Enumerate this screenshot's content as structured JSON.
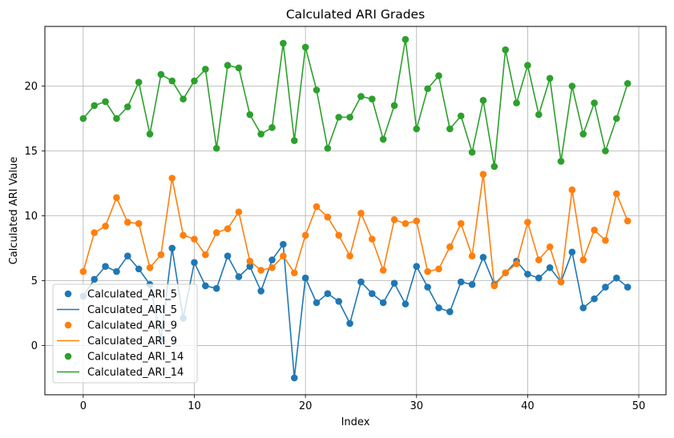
{
  "chart_data": {
    "type": "line",
    "title": "Calculated ARI Grades",
    "xlabel": "Index",
    "ylabel": "Calculated ARI Value",
    "xlim": [
      -3.45,
      52.45
    ],
    "ylim": [
      -3.8,
      24.6
    ],
    "xticks": [
      0,
      10,
      20,
      30,
      40,
      50
    ],
    "yticks": [
      0,
      5,
      10,
      15,
      20
    ],
    "grid": true,
    "legend_position": "lower-left",
    "legend_entries": [
      {
        "label": "Calculated_ARI_5",
        "kind": "markers",
        "series": 0
      },
      {
        "label": "Calculated_ARI_5",
        "kind": "line",
        "series": 0
      },
      {
        "label": "Calculated_ARI_9",
        "kind": "markers",
        "series": 1
      },
      {
        "label": "Calculated_ARI_9",
        "kind": "line",
        "series": 1
      },
      {
        "label": "Calculated_ARI_14",
        "kind": "markers",
        "series": 2
      },
      {
        "label": "Calculated_ARI_14",
        "kind": "line",
        "series": 2
      }
    ],
    "x": [
      0,
      1,
      2,
      3,
      4,
      5,
      6,
      7,
      8,
      9,
      10,
      11,
      12,
      13,
      14,
      15,
      16,
      17,
      18,
      19,
      20,
      21,
      22,
      23,
      24,
      25,
      26,
      27,
      28,
      29,
      30,
      31,
      32,
      33,
      34,
      35,
      36,
      37,
      38,
      39,
      40,
      41,
      42,
      43,
      44,
      45,
      46,
      47,
      48,
      49
    ],
    "series": [
      {
        "name": "Calculated_ARI_5",
        "color": "#1f77b4",
        "values": [
          3.8,
          5.1,
          6.1,
          5.7,
          6.9,
          5.9,
          4.7,
          0.5,
          7.5,
          2.1,
          6.4,
          4.6,
          4.4,
          6.9,
          5.3,
          6.1,
          4.2,
          6.6,
          7.8,
          -2.5,
          5.2,
          3.3,
          4.0,
          3.4,
          1.7,
          4.9,
          4.0,
          3.3,
          4.8,
          3.2,
          6.1,
          4.5,
          2.9,
          2.6,
          4.9,
          4.7,
          6.8,
          4.7,
          5.6,
          6.5,
          5.5,
          5.2,
          6.0,
          4.9,
          7.2,
          2.9,
          3.6,
          4.5,
          5.2,
          4.5
        ]
      },
      {
        "name": "Calculated_ARI_9",
        "color": "#ff7f0e",
        "values": [
          5.7,
          8.7,
          9.2,
          11.4,
          9.5,
          9.4,
          6.0,
          7.0,
          12.9,
          8.5,
          8.2,
          7.0,
          8.7,
          9.0,
          10.3,
          6.5,
          5.8,
          6.0,
          6.9,
          5.6,
          8.5,
          10.7,
          9.9,
          8.5,
          6.9,
          10.2,
          8.2,
          5.8,
          9.7,
          9.4,
          9.6,
          5.7,
          5.9,
          7.6,
          9.4,
          6.9,
          13.2,
          4.6,
          5.6,
          6.3,
          9.5,
          6.6,
          7.6,
          4.9,
          12.0,
          6.6,
          8.9,
          8.1,
          11.7,
          9.6
        ]
      },
      {
        "name": "Calculated_ARI_14",
        "color": "#2ca02c",
        "values": [
          17.5,
          18.5,
          18.8,
          17.5,
          18.4,
          20.3,
          16.3,
          20.9,
          20.4,
          19.0,
          20.4,
          21.3,
          15.2,
          21.6,
          21.4,
          17.8,
          16.3,
          16.8,
          23.3,
          15.8,
          23.0,
          19.7,
          15.2,
          17.6,
          17.6,
          19.2,
          19.0,
          15.9,
          18.5,
          23.6,
          16.7,
          19.8,
          20.8,
          16.7,
          17.7,
          14.9,
          18.9,
          13.8,
          22.8,
          18.7,
          21.6,
          17.8,
          20.6,
          14.2,
          20.0,
          16.3,
          18.7,
          15.0,
          17.5,
          20.2
        ]
      }
    ]
  }
}
